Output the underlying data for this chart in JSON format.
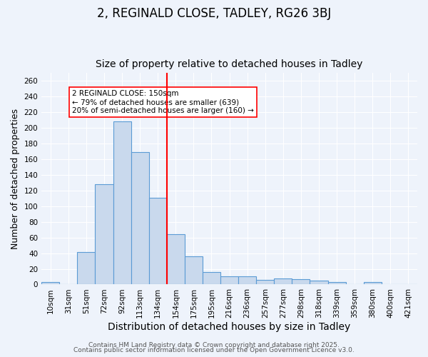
{
  "title": "2, REGINALD CLOSE, TADLEY, RG26 3BJ",
  "subtitle": "Size of property relative to detached houses in Tadley",
  "xlabel": "Distribution of detached houses by size in Tadley",
  "ylabel": "Number of detached properties",
  "bar_labels": [
    "10sqm",
    "31sqm",
    "51sqm",
    "72sqm",
    "92sqm",
    "113sqm",
    "134sqm",
    "154sqm",
    "175sqm",
    "195sqm",
    "216sqm",
    "236sqm",
    "257sqm",
    "277sqm",
    "298sqm",
    "318sqm",
    "339sqm",
    "359sqm",
    "380sqm",
    "400sqm",
    "421sqm"
  ],
  "bar_values": [
    3,
    0,
    41,
    128,
    208,
    169,
    111,
    64,
    36,
    16,
    10,
    10,
    6,
    8,
    7,
    5,
    3,
    0,
    3,
    0,
    0
  ],
  "bar_color": "#c9d9ed",
  "bar_edgecolor": "#5b9bd5",
  "bar_linewidth": 0.8,
  "vline_x": 6.5,
  "vline_color": "red",
  "vline_linewidth": 1.5,
  "annotation_text": "2 REGINALD CLOSE: 150sqm\n← 79% of detached houses are smaller (639)\n20% of semi-detached houses are larger (160) →",
  "ylim": [
    0,
    270
  ],
  "yticks": [
    0,
    20,
    40,
    60,
    80,
    100,
    120,
    140,
    160,
    180,
    200,
    220,
    240,
    260
  ],
  "background_color": "#eef3fb",
  "grid_color": "#ffffff",
  "footer1": "Contains HM Land Registry data © Crown copyright and database right 2025.",
  "footer2": "Contains public sector information licensed under the Open Government Licence v3.0.",
  "title_fontsize": 12,
  "subtitle_fontsize": 10,
  "xlabel_fontsize": 10,
  "ylabel_fontsize": 9,
  "tick_fontsize": 7.5,
  "footer_fontsize": 6.5
}
